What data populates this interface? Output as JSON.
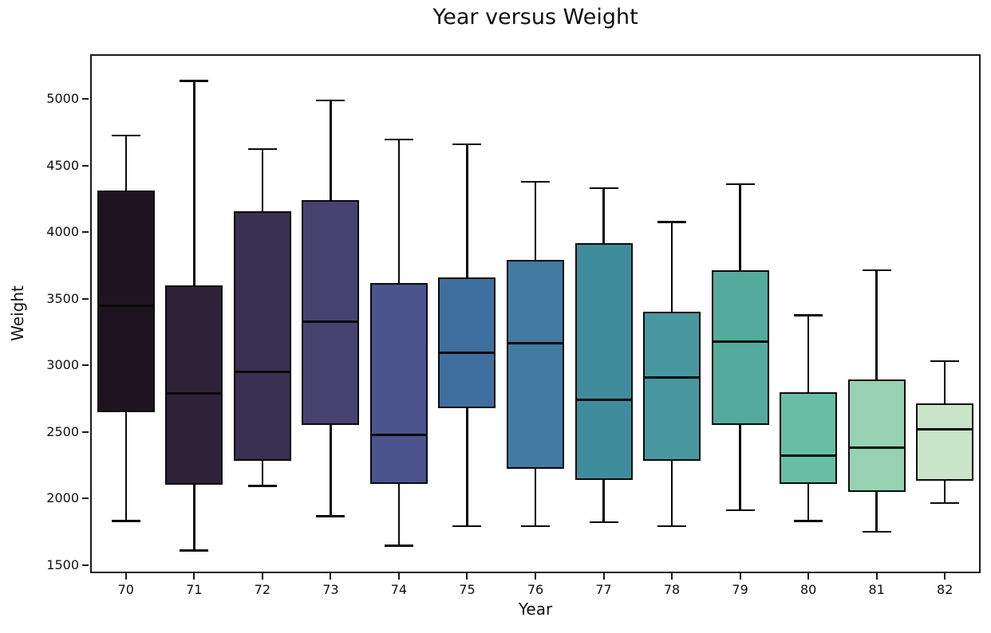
{
  "figure": {
    "title": "Year versus Weight"
  },
  "chart_data": {
    "type": "box",
    "title": "Year versus Weight",
    "xlabel": "Year",
    "ylabel": "Weight",
    "categories": [
      "70",
      "71",
      "72",
      "73",
      "74",
      "75",
      "76",
      "77",
      "78",
      "79",
      "80",
      "81",
      "82"
    ],
    "y_ticks": [
      5000,
      4500,
      4000,
      3500,
      3000,
      2500,
      2000,
      1500
    ],
    "ylim": [
      1450,
      5325
    ],
    "grid": false,
    "legend": "none",
    "series": [
      {
        "category": "70",
        "whisker_low": 1830,
        "q1": 2650,
        "median": 3450,
        "q3": 4310,
        "whisker_high": 4725,
        "color": "#1e141f"
      },
      {
        "category": "71",
        "whisker_low": 1610,
        "q1": 2100,
        "median": 2790,
        "q3": 3600,
        "whisker_high": 5135,
        "color": "#2e2239"
      },
      {
        "category": "72",
        "whisker_low": 2095,
        "q1": 2280,
        "median": 2950,
        "q3": 4160,
        "whisker_high": 4625,
        "color": "#3a3051"
      },
      {
        "category": "73",
        "whisker_low": 1865,
        "q1": 2550,
        "median": 3330,
        "q3": 4240,
        "whisker_high": 4990,
        "color": "#474270"
      },
      {
        "category": "74",
        "whisker_low": 1645,
        "q1": 2110,
        "median": 2480,
        "q3": 3620,
        "whisker_high": 4695,
        "color": "#4b548c"
      },
      {
        "category": "75",
        "whisker_low": 1790,
        "q1": 2680,
        "median": 3095,
        "q3": 3660,
        "whisker_high": 4660,
        "color": "#3f6f9e"
      },
      {
        "category": "76",
        "whisker_low": 1790,
        "q1": 2220,
        "median": 3165,
        "q3": 3790,
        "whisker_high": 4380,
        "color": "#417ba0"
      },
      {
        "category": "77",
        "whisker_low": 1820,
        "q1": 2140,
        "median": 2740,
        "q3": 3920,
        "whisker_high": 4330,
        "color": "#3f8c9c"
      },
      {
        "category": "78",
        "whisker_low": 1790,
        "q1": 2280,
        "median": 2910,
        "q3": 3400,
        "whisker_high": 4075,
        "color": "#48979f"
      },
      {
        "category": "79",
        "whisker_low": 1910,
        "q1": 2550,
        "median": 3180,
        "q3": 3715,
        "whisker_high": 4360,
        "color": "#54ab9b"
      },
      {
        "category": "80",
        "whisker_low": 1830,
        "q1": 2110,
        "median": 2320,
        "q3": 2795,
        "whisker_high": 3375,
        "color": "#67bea4"
      },
      {
        "category": "81",
        "whisker_low": 1750,
        "q1": 2050,
        "median": 2380,
        "q3": 2895,
        "whisker_high": 3715,
        "color": "#96d2b2"
      },
      {
        "category": "82",
        "whisker_low": 1965,
        "q1": 2130,
        "median": 2520,
        "q3": 2715,
        "whisker_high": 3030,
        "color": "#c8e4c9"
      }
    ]
  }
}
